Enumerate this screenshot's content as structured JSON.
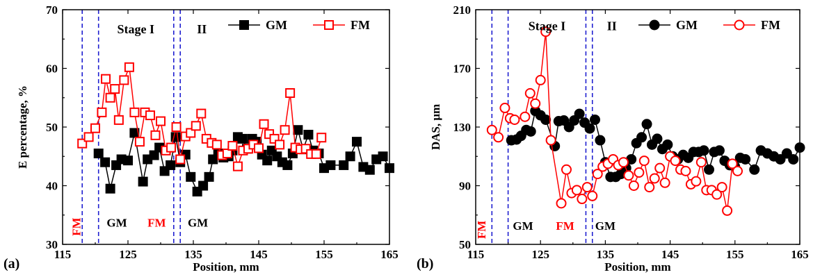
{
  "colors": {
    "gm": "#000000",
    "fm": "#ff0000",
    "stage_lines": "#1f1fd0"
  },
  "chart_data": [
    {
      "panel_label": "(a)",
      "type": "scatter",
      "xlabel": "Position, mm",
      "ylabel": "E percentage, %",
      "xlim": [
        115,
        165
      ],
      "ylim": [
        30,
        70
      ],
      "xticks": [
        115,
        125,
        135,
        145,
        155,
        165
      ],
      "xtick_labels": [
        "115",
        "125",
        "135",
        "145",
        "155",
        "165"
      ],
      "yticks": [
        30,
        40,
        50,
        60,
        70
      ],
      "ytick_labels": [
        "30",
        "40",
        "50",
        "60",
        "70"
      ],
      "marker_shape": "square",
      "legend_position": "top-right",
      "stage_lines_x": [
        118,
        120.5,
        132,
        133
      ],
      "stage_labels": [
        {
          "text": "Stage I",
          "x": 126.2,
          "y": 66
        },
        {
          "text": "II",
          "x": 136.3,
          "y": 66
        }
      ],
      "zone_labels": [
        {
          "text": "FM",
          "x": 117.7,
          "y": 33,
          "color": "#ff0000",
          "vertical": true
        },
        {
          "text": "GM",
          "x": 123.3,
          "y": 33,
          "color": "#000000",
          "vertical": false
        },
        {
          "text": "FM",
          "x": 129.4,
          "y": 33,
          "color": "#ff0000",
          "vertical": false
        },
        {
          "text": "GM",
          "x": 135.7,
          "y": 33,
          "color": "#000000",
          "vertical": false
        }
      ],
      "series": [
        {
          "name": "GM",
          "color": "#000000",
          "filled": true,
          "x": [
            120.5,
            121.5,
            122.3,
            123.2,
            124.0,
            125.0,
            126.0,
            127.3,
            128.0,
            129.0,
            129.8,
            130.6,
            131.5,
            132.3,
            133.0,
            133.8,
            134.6,
            135.6,
            136.5,
            137.4,
            138.0,
            138.8,
            139.6,
            140.4,
            141.0,
            141.8,
            142.5,
            143.2,
            144.0,
            144.7,
            145.5,
            146.3,
            147.0,
            147.8,
            148.6,
            149.4,
            150.2,
            151.0,
            151.8,
            152.6,
            153.3,
            154.2,
            155.0,
            156.0,
            158.0,
            159.0,
            160.0,
            161.0,
            162.0,
            163.0,
            164.0,
            165.0
          ],
          "y": [
            45.5,
            44.0,
            39.5,
            43.5,
            44.5,
            44.3,
            49.0,
            40.7,
            44.5,
            45.2,
            46.5,
            42.5,
            43.5,
            48.3,
            44.0,
            45.3,
            41.5,
            39.0,
            40.0,
            41.5,
            44.5,
            45.5,
            44.8,
            45.0,
            46.0,
            48.3,
            48.0,
            46.3,
            48.0,
            47.5,
            45.3,
            44.3,
            46.0,
            45.0,
            44.0,
            43.5,
            45.5,
            49.5,
            46.2,
            48.7,
            46.0,
            45.5,
            43.0,
            43.5,
            43.5,
            45.0,
            47.5,
            43.2,
            42.7,
            44.5,
            45.0,
            43.0
          ]
        },
        {
          "name": "FM",
          "color": "#ff0000",
          "filled": false,
          "x": [
            118.0,
            119.0,
            120.0,
            121.0,
            121.6,
            122.3,
            123.0,
            123.6,
            124.4,
            125.2,
            126.0,
            126.8,
            127.6,
            128.4,
            129.2,
            130.0,
            130.8,
            131.6,
            132.4,
            133.0,
            133.8,
            134.6,
            135.4,
            136.2,
            137.0,
            137.8,
            138.6,
            139.4,
            140.2,
            141.0,
            141.8,
            142.6,
            143.4,
            144.2,
            145.0,
            145.8,
            146.6,
            147.4,
            148.2,
            149.0,
            149.8,
            150.6,
            151.4,
            152.2,
            153.0,
            153.8,
            154.6
          ],
          "y": [
            47.2,
            48.3,
            49.8,
            52.5,
            58.2,
            55.0,
            56.5,
            51.2,
            58.0,
            60.2,
            52.5,
            47.5,
            52.5,
            52.0,
            48.6,
            51.0,
            46.0,
            46.5,
            50.0,
            44.5,
            48.4,
            49.0,
            50.2,
            52.3,
            48.0,
            47.3,
            47.0,
            45.2,
            45.5,
            46.8,
            43.3,
            46.0,
            46.3,
            47.0,
            46.4,
            50.5,
            48.8,
            48.0,
            47.0,
            49.5,
            55.8,
            46.5,
            46.2,
            46.3,
            45.4,
            45.4,
            48.2
          ]
        }
      ]
    },
    {
      "panel_label": "(b)",
      "type": "scatter",
      "xlabel": "Position, mm",
      "ylabel": "DAS, μm",
      "xlim": [
        115,
        165
      ],
      "ylim": [
        50,
        210
      ],
      "xticks": [
        115,
        125,
        135,
        145,
        155,
        165
      ],
      "xtick_labels": [
        "115",
        "125",
        "135",
        "145",
        "155",
        "165"
      ],
      "yticks": [
        50,
        90,
        130,
        170,
        210
      ],
      "ytick_labels": [
        "50",
        "90",
        "130",
        "170",
        "210"
      ],
      "marker_shape": "circle",
      "legend_position": "top-right",
      "stage_lines_x": [
        117.5,
        120,
        132,
        133
      ],
      "stage_labels": [
        {
          "text": "Stage I",
          "x": 126.0,
          "y": 196
        },
        {
          "text": "II",
          "x": 136.0,
          "y": 196
        }
      ],
      "zone_labels": [
        {
          "text": "FM",
          "x": 116.5,
          "y": 60,
          "color": "#ff0000",
          "vertical": true
        },
        {
          "text": "GM",
          "x": 122.3,
          "y": 60,
          "color": "#000000",
          "vertical": false
        },
        {
          "text": "FM",
          "x": 128.8,
          "y": 60,
          "color": "#ff0000",
          "vertical": false
        },
        {
          "text": "GM",
          "x": 135.0,
          "y": 60,
          "color": "#000000",
          "vertical": false
        }
      ],
      "series": [
        {
          "name": "GM",
          "color": "#000000",
          "filled": true,
          "x": [
            120.5,
            121.3,
            122.0,
            122.8,
            123.5,
            124.2,
            125.0,
            125.8,
            127.2,
            127.8,
            128.6,
            129.4,
            130.2,
            131.0,
            131.8,
            132.6,
            133.4,
            134.2,
            135.0,
            135.8,
            136.6,
            137.4,
            138.2,
            139.0,
            139.8,
            140.6,
            141.4,
            142.2,
            143.0,
            143.8,
            144.6,
            145.4,
            146.2,
            147.0,
            147.8,
            148.6,
            149.4,
            150.2,
            151.0,
            151.8,
            152.6,
            153.4,
            154.2,
            155.0,
            155.8,
            156.6,
            158.0,
            159.0,
            160.0,
            161.0,
            162.0,
            163.0,
            164.0,
            165.0
          ],
          "y": [
            121.0,
            121.5,
            124.0,
            128.0,
            127.0,
            141.0,
            138.0,
            135.0,
            117.0,
            134.0,
            134.5,
            130.0,
            134.5,
            139.0,
            133.0,
            129.0,
            135.0,
            121.0,
            106.0,
            96.0,
            96.0,
            98.0,
            102.0,
            108.0,
            119.0,
            123.0,
            132.0,
            118.0,
            122.0,
            115.0,
            118.0,
            110.0,
            108.0,
            111.0,
            109.0,
            113.0,
            113.0,
            114.0,
            101.0,
            113.0,
            114.0,
            107.0,
            104.0,
            103.0,
            109.0,
            108.0,
            101.0,
            114.0,
            112.0,
            110.0,
            108.0,
            112.0,
            108.0,
            116.0
          ]
        },
        {
          "name": "FM",
          "color": "#ff0000",
          "filled": false,
          "x": [
            117.5,
            118.5,
            119.5,
            120.3,
            121.0,
            122.6,
            123.4,
            124.2,
            125.0,
            125.8,
            126.6,
            128.2,
            129.0,
            129.8,
            130.6,
            131.4,
            132.2,
            133.0,
            133.8,
            134.6,
            135.4,
            136.2,
            137.0,
            137.8,
            138.6,
            139.4,
            140.2,
            141.0,
            141.8,
            142.6,
            143.4,
            144.2,
            145.0,
            145.8,
            146.6,
            147.4,
            148.2,
            149.0,
            149.8,
            150.6,
            151.4,
            152.2,
            153.0,
            153.8,
            154.6,
            155.4
          ],
          "y": [
            128.0,
            123.0,
            143.0,
            136.0,
            135.0,
            137.0,
            153.0,
            146.0,
            162.0,
            195.0,
            121.0,
            78.0,
            101.0,
            85.0,
            87.0,
            81.0,
            89.0,
            83.0,
            98.0,
            103.0,
            105.0,
            108.0,
            104.0,
            106.0,
            97.0,
            90.0,
            99.0,
            107.0,
            89.0,
            95.0,
            102.0,
            92.0,
            110.0,
            107.0,
            101.0,
            100.0,
            91.0,
            93.0,
            106.0,
            87.0,
            87.0,
            84.0,
            89.0,
            73.0,
            105.0,
            100.0
          ]
        }
      ]
    }
  ]
}
